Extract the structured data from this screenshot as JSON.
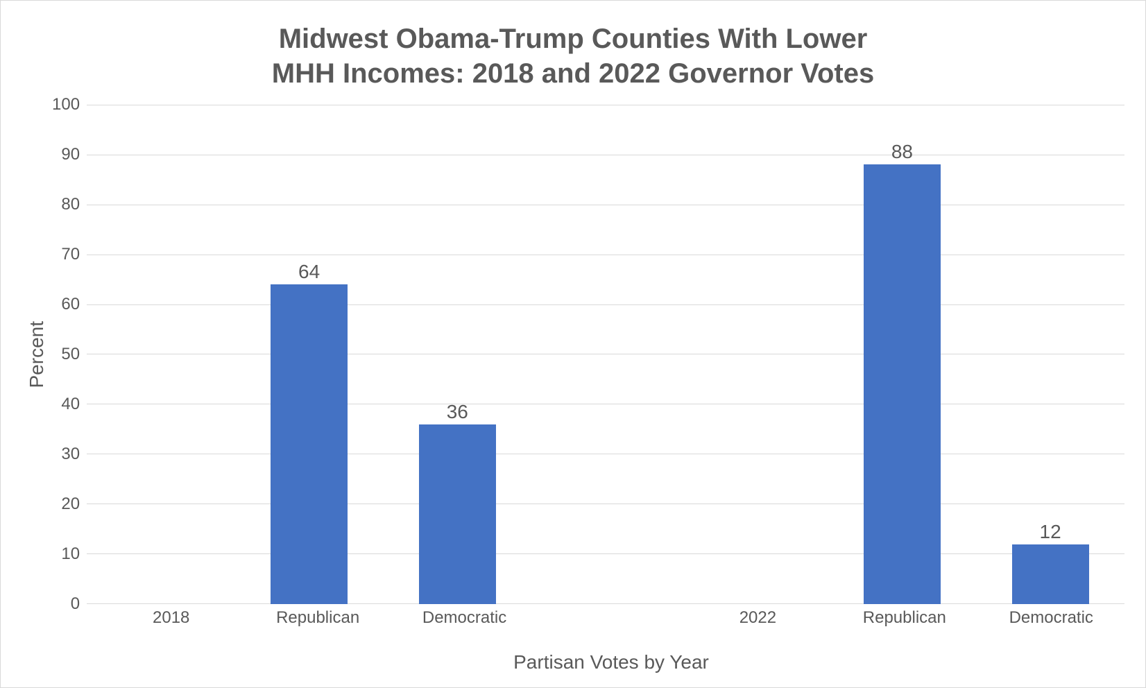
{
  "chart": {
    "type": "bar",
    "title_line1": "Midwest Obama-Trump Counties With Lower",
    "title_line2": "MHH Incomes: 2018 and 2022 Governor Votes",
    "title_fontsize": 40,
    "title_color": "#595959",
    "xlabel": "Partisan Votes by Year",
    "ylabel": "Percent",
    "label_fontsize": 28,
    "label_color": "#595959",
    "ylim": [
      0,
      100
    ],
    "ytick_step": 10,
    "yticks": [
      0,
      10,
      20,
      30,
      40,
      50,
      60,
      70,
      80,
      90,
      100
    ],
    "tick_fontsize": 24,
    "tick_color": "#595959",
    "bar_color": "#4472c4",
    "bar_width": 0.52,
    "background_color": "#ffffff",
    "border_color": "#d9d9d9",
    "grid_color": "#d9d9d9",
    "datalabel_fontsize": 28,
    "datalabel_color": "#595959",
    "categories": [
      "2018",
      "Republican",
      "Democratic",
      "",
      "2022",
      "Republican",
      "Democratic"
    ],
    "values": [
      null,
      64,
      36,
      null,
      null,
      88,
      12
    ],
    "value_labels": [
      "",
      "64",
      "36",
      "",
      "",
      "88",
      "12"
    ]
  }
}
